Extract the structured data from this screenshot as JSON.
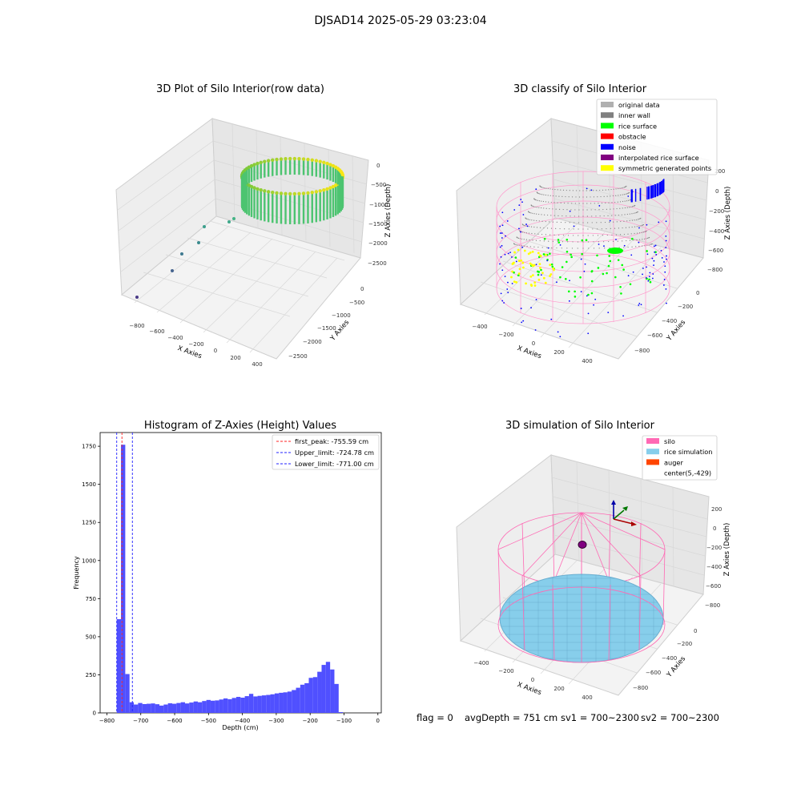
{
  "suptitle": "DJSAD14 2025-05-29 03:23:04",
  "colors": {
    "histogram_bar": "#5050ff",
    "peak_line": "#ff2020",
    "limit_line": "#2020ff",
    "silo": "#ff69b4",
    "rice": "#87ceeb",
    "auger": "#ff4500",
    "noise": "#0000ff",
    "rice_surface": "#00ff00",
    "symmetric": "#ffff00",
    "inner_wall": "#808080",
    "original": "#b0b0b0",
    "interpolated": "#800080"
  },
  "panels": {
    "raw": {
      "title": "3D Plot of Silo Interior(row data)",
      "xlabel": "X Axies",
      "ylabel": "Y Axies",
      "zlabel": "Z Axies (Depth)",
      "xticks": [
        "−800",
        "−600",
        "−400",
        "−200",
        "0",
        "200",
        "400"
      ],
      "yticks": [
        "0",
        "−500",
        "−1000",
        "−1500",
        "−2000",
        "−2500"
      ],
      "zticks": [
        "0",
        "−500",
        "−1000",
        "−1500",
        "−2000",
        "−2500"
      ]
    },
    "classify": {
      "title": "3D classify of Silo Interior",
      "xlabel": "X Axies",
      "ylabel": "Y Axies",
      "zlabel": "Z Axies (Depth)",
      "xticks": [
        "−400",
        "−200",
        "0",
        "200",
        "400"
      ],
      "yticks": [
        "0",
        "−200",
        "−400",
        "−600",
        "−800"
      ],
      "zticks": [
        "200",
        "0",
        "−200",
        "−400",
        "−600",
        "−800"
      ],
      "legend": [
        {
          "label": "original data",
          "color": "#b0b0b0"
        },
        {
          "label": "inner wall",
          "color": "#808080"
        },
        {
          "label": "rice surface",
          "color": "#00ff00"
        },
        {
          "label": "obstacle",
          "color": "#ff0000"
        },
        {
          "label": "noise",
          "color": "#0000ff"
        },
        {
          "label": "interpolated rice surface",
          "color": "#800080"
        },
        {
          "label": "symmetric generated points",
          "color": "#ffff00"
        }
      ]
    },
    "simulation": {
      "title": "3D simulation of Silo Interior",
      "xlabel": "X Axies",
      "ylabel": "Y Axies",
      "zlabel": "Z Axies (Depth)",
      "xticks": [
        "−400",
        "−200",
        "0",
        "200",
        "400"
      ],
      "yticks": [
        "0",
        "−200",
        "−400",
        "−600",
        "−800"
      ],
      "zticks": [
        "200",
        "0",
        "−200",
        "−400",
        "−600",
        "−800"
      ],
      "legend": [
        {
          "label": "silo",
          "color": "#ff69b4"
        },
        {
          "label": "rice simulation",
          "color": "#87ceeb"
        },
        {
          "label": "auger",
          "color": "#ff4500"
        },
        {
          "label": "center(5,-429)",
          "color": ""
        }
      ]
    }
  },
  "footer": {
    "flag": "flag = 0",
    "avg_depth": "avgDepth = 751 cm",
    "sv1": "sv1 = 700~2300",
    "sv2": "sv2 = 700~2300"
  },
  "chart_data": {
    "type": "bar",
    "title": "Histogram of Z-Axies (Height) Values",
    "xlabel": "Depth (cm)",
    "ylabel": "Frequency",
    "xlim": [
      -820,
      10
    ],
    "ylim": [
      0,
      1840
    ],
    "xticks": [
      -800,
      -700,
      -600,
      -500,
      -400,
      -300,
      -200,
      -100,
      0
    ],
    "xtick_labels": [
      "−800",
      "−700",
      "−600",
      "−500",
      "−400",
      "−300",
      "−200",
      "−100",
      "0"
    ],
    "yticks": [
      0,
      250,
      500,
      750,
      1000,
      1250,
      1500,
      1750
    ],
    "bin_width": 12.6,
    "bin_edges_start": -771,
    "values": [
      615,
      1760,
      255,
      70,
      55,
      65,
      58,
      60,
      62,
      57,
      48,
      55,
      63,
      60,
      65,
      70,
      62,
      68,
      75,
      70,
      78,
      85,
      80,
      82,
      88,
      95,
      90,
      98,
      105,
      100,
      110,
      125,
      108,
      112,
      115,
      118,
      122,
      128,
      132,
      135,
      140,
      150,
      165,
      185,
      195,
      230,
      235,
      270,
      315,
      335,
      285,
      190,
      5
    ],
    "vlines": [
      {
        "label": "first_peak: -755.59 cm",
        "x": -755.59,
        "color": "#ff2020"
      },
      {
        "label": "Upper_limit: -724.78 cm",
        "x": -724.78,
        "color": "#2020ff"
      },
      {
        "label": "Lower_limit: -771.00 cm",
        "x": -771.0,
        "color": "#2020ff"
      }
    ]
  }
}
